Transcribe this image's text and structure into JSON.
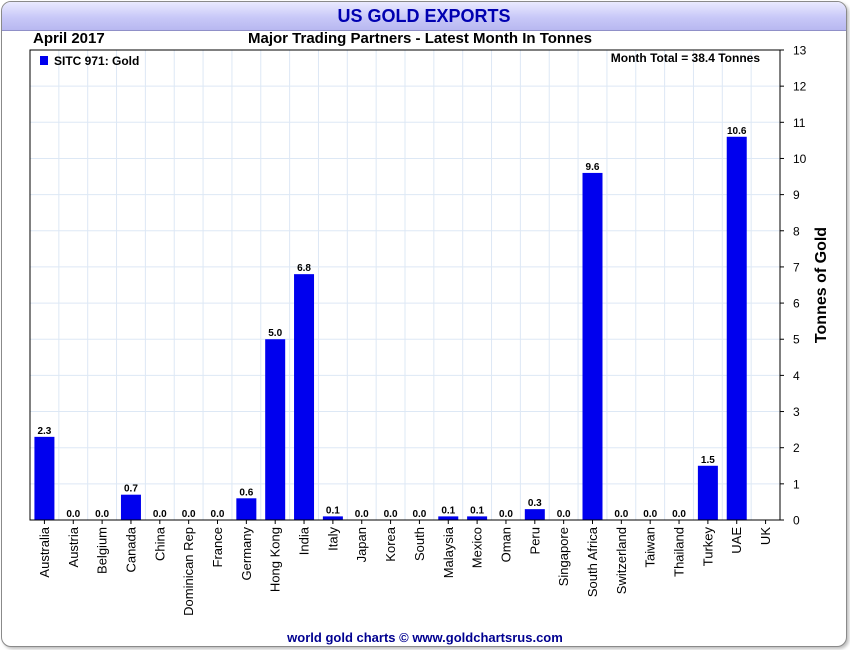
{
  "header": {
    "title": "US GOLD EXPORTS",
    "date": "April 2017",
    "subtitle": "Major Trading Partners - Latest Month In Tonnes",
    "footer": "world gold charts © www.goldchartsrus.com"
  },
  "colors": {
    "bar": "#0000ee",
    "title_text": "#0000b0",
    "grid": "#dde8f5"
  },
  "chart_data": {
    "type": "bar",
    "categories": [
      "Australia",
      "Austria",
      "Belgium",
      "Canada",
      "China",
      "Dominican Rep",
      "France",
      "Germany",
      "Hong Kong",
      "India",
      "Italy",
      "Japan",
      "Korea",
      "South",
      "Malaysia",
      "Mexico",
      "Oman",
      "Peru",
      "Singapore",
      "South Africa",
      "Switzerland",
      "Taiwan",
      "Thailand",
      "Turkey",
      "UAE",
      "UK"
    ],
    "series": [
      {
        "name": "SITC 971: Gold",
        "values": [
          2.3,
          0.0,
          0.0,
          0.7,
          0.0,
          0.0,
          0.0,
          0.6,
          5.0,
          6.8,
          0.1,
          0.0,
          0.0,
          0.0,
          0.1,
          0.1,
          0.0,
          0.3,
          0.0,
          9.6,
          0.0,
          0.0,
          0.0,
          1.5,
          10.6,
          null
        ],
        "labels": [
          "2.3",
          "0.0",
          "0.0",
          "0.7",
          "0.0",
          "0.0",
          "0.0",
          "0.6",
          "5.0",
          "6.8",
          "0.1",
          "0.0",
          "0.0",
          "0.0",
          "0.1",
          "0.1",
          "0.0",
          "0.3",
          "0.0",
          "9.6",
          "0.0",
          "0.0",
          "0.0",
          "1.5",
          "10.6",
          ""
        ]
      }
    ],
    "ylabel": "Tonnes of Gold",
    "ylim": [
      0,
      13
    ],
    "yticks": [
      0,
      1,
      2,
      3,
      4,
      5,
      6,
      7,
      8,
      9,
      10,
      11,
      12,
      13
    ],
    "legend": "top-left",
    "annotation": "Month Total = 38.4 Tonnes",
    "grid": true
  }
}
